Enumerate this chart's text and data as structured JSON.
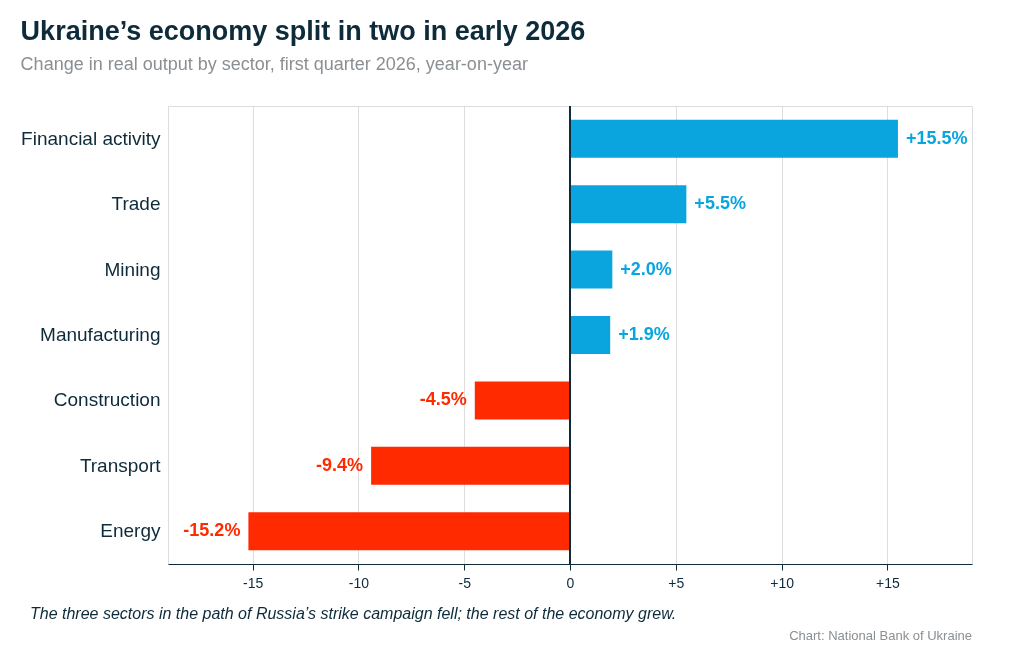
{
  "chart_data": {
    "type": "bar",
    "orientation": "horizontal",
    "title": "Ukraine’s economy split in two in early 2026",
    "subtitle": "Change in real output by sector, first quarter 2026, year-on-year",
    "categories": [
      "Financial activity",
      "Trade",
      "Mining",
      "Manufacturing",
      "Construction",
      "Transport",
      "Energy"
    ],
    "values": [
      15.5,
      5.5,
      2.0,
      1.9,
      -4.5,
      -9.4,
      -15.2
    ],
    "colors": [
      "#0aa5df",
      "#0aa5df",
      "#0aa5df",
      "#0aa5df",
      "#ff2a00",
      "#ff2a00",
      "#ff2a00"
    ],
    "value_labels": [
      "+15.5%",
      "+5.5%",
      "+2.0%",
      "+1.9%",
      "-4.5%",
      "-9.4%",
      "-15.2%"
    ],
    "xlim": [
      -19,
      19
    ],
    "xticks": [
      -15,
      -10,
      -5,
      0,
      {
        "value": 5,
        "label": "+5"
      },
      {
        "value": 10,
        "label": "+10"
      },
      {
        "value": 15,
        "label": "+15"
      }
    ],
    "grid": "x",
    "ref_lines": [
      {
        "axis": "x",
        "value": 0,
        "color": "#0d2b3a"
      }
    ],
    "annotations": [
      "The three sectors in the path of Russia’s strike campaign fell; the rest of the economy grew.",
      "Chart: National Bank of Ukraine"
    ],
    "line_style": "solid"
  }
}
